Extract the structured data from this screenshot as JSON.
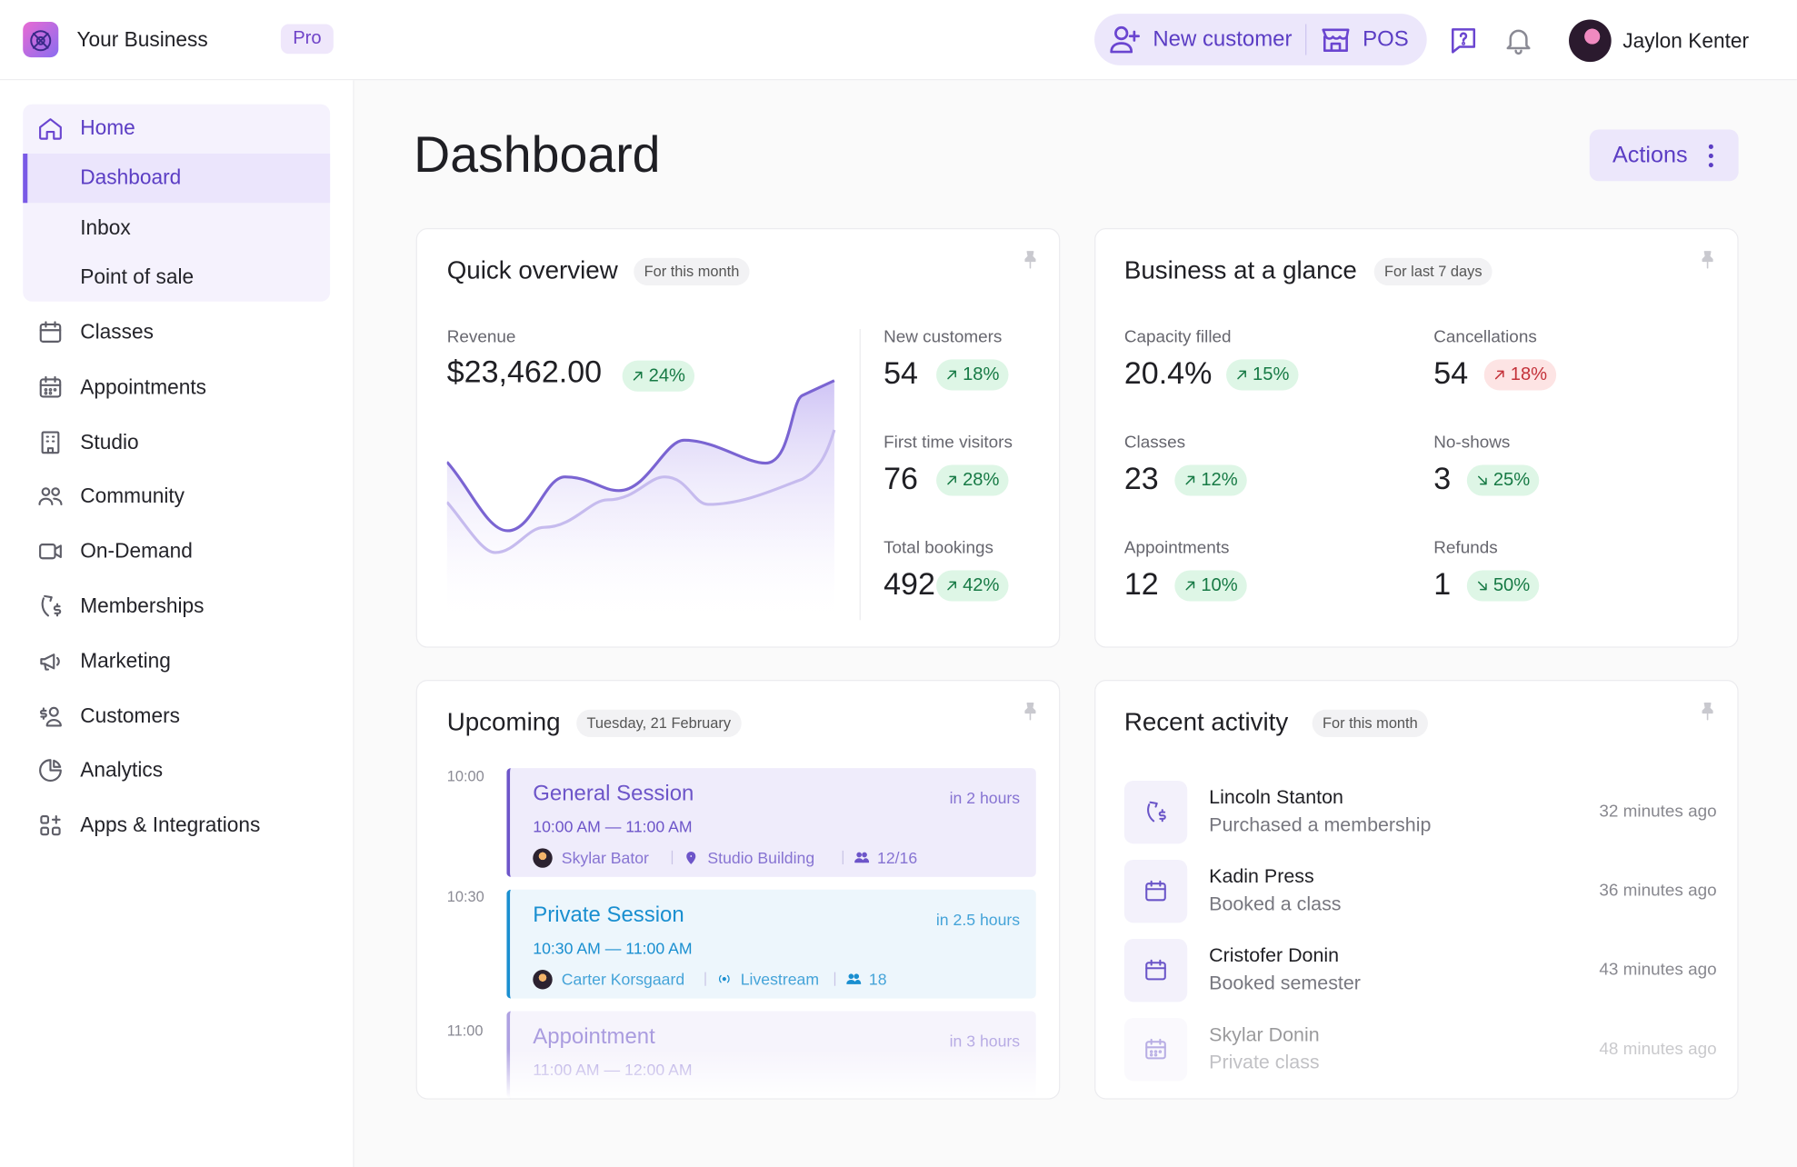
{
  "header": {
    "business": "Your Business",
    "plan": "Pro",
    "new_customer": "New customer",
    "pos": "POS",
    "user": "Jaylon Kenter"
  },
  "sidebar": {
    "home": "Home",
    "home_items": [
      "Dashboard",
      "Inbox",
      "Point of sale"
    ],
    "items": [
      "Classes",
      "Appointments",
      "Studio",
      "Community",
      "On-Demand",
      "Memberships",
      "Marketing",
      "Customers",
      "Analytics",
      "Apps & Integrations"
    ]
  },
  "page": {
    "title": "Dashboard",
    "actions": "Actions"
  },
  "quick_overview": {
    "title": "Quick overview",
    "period": "For this month",
    "revenue": {
      "label": "Revenue",
      "value": "$23,462.00",
      "change": "24%",
      "trend": "up",
      "color": "green"
    },
    "stats": [
      {
        "label": "New customers",
        "value": "54",
        "change": "18%",
        "trend": "up",
        "color": "green"
      },
      {
        "label": "First time visitors",
        "value": "76",
        "change": "28%",
        "trend": "up",
        "color": "green"
      },
      {
        "label": "Total bookings",
        "value": "492",
        "change": "42%",
        "trend": "up",
        "color": "green"
      }
    ]
  },
  "glance": {
    "title": "Business at a glance",
    "period": "For last 7 days",
    "stats": [
      {
        "label": "Capacity filled",
        "value": "20.4%",
        "change": "15%",
        "trend": "up",
        "color": "green"
      },
      {
        "label": "Cancellations",
        "value": "54",
        "change": "18%",
        "trend": "up",
        "color": "red"
      },
      {
        "label": "Classes",
        "value": "23",
        "change": "12%",
        "trend": "up",
        "color": "green"
      },
      {
        "label": "No-shows",
        "value": "3",
        "change": "25%",
        "trend": "down",
        "color": "green"
      },
      {
        "label": "Appointments",
        "value": "12",
        "change": "10%",
        "trend": "up",
        "color": "green"
      },
      {
        "label": "Refunds",
        "value": "1",
        "change": "50%",
        "trend": "down",
        "color": "green"
      }
    ]
  },
  "upcoming": {
    "title": "Upcoming",
    "date": "Tuesday, 21 February",
    "times": [
      "10:00",
      "10:30",
      "11:00"
    ],
    "events": [
      {
        "title": "General Session",
        "time": "10:00 AM — 11:00 AM",
        "relative": "in 2 hours",
        "host": "Skylar Bator",
        "location": "Studio Building",
        "attendees": "12/16",
        "color": "#6d55c9"
      },
      {
        "title": "Private Session",
        "time": "10:30 AM — 11:00 AM",
        "relative": "in 2.5 hours",
        "host": "Carter Korsgaard",
        "location": "Livestream",
        "attendees": "18",
        "color": "#1a8fd0"
      },
      {
        "title": "Appointment",
        "time": "11:00 AM — 12:00 AM",
        "relative": "in 3 hours",
        "color": "#6d55c9"
      }
    ]
  },
  "recent": {
    "title": "Recent activity",
    "period": "For this month",
    "items": [
      {
        "name": "Lincoln Stanton",
        "action": "Purchased a membership",
        "time": "32 minutes ago"
      },
      {
        "name": "Kadin Press",
        "action": "Booked a class",
        "time": "36 minutes ago"
      },
      {
        "name": "Cristofer Donin",
        "action": "Booked semester",
        "time": "43 minutes ago"
      },
      {
        "name": "Skylar Donin",
        "action": "Private class",
        "time": "48 minutes ago"
      }
    ]
  }
}
